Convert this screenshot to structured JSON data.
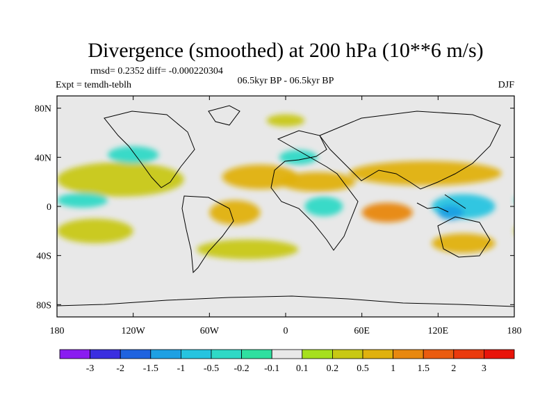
{
  "chart_data": {
    "type": "heatmap",
    "title": "Divergence (smoothed) at 200 hPa (10**6 m/s)",
    "stats": "rmsd= 0.2352 diff= -0.000220304",
    "experiment": "Expt = temdh-teblh",
    "period": "06.5kyr BP - 06.5kyr BP",
    "season": "DJF",
    "x_tick_labels": [
      "180",
      "120W",
      "60W",
      "0",
      "60E",
      "120E",
      "180"
    ],
    "x_ticks": [
      -180,
      -120,
      -60,
      0,
      60,
      120,
      180
    ],
    "xlim": [
      -180,
      180
    ],
    "y_tick_labels": [
      "80N",
      "40N",
      "0",
      "40S",
      "80S"
    ],
    "y_ticks": [
      80,
      40,
      0,
      -40,
      -80
    ],
    "ylim": [
      -90,
      90
    ],
    "colorbar": {
      "levels": [
        "-3",
        "-2",
        "-1.5",
        "-1",
        "-0.5",
        "-0.2",
        "-0.1",
        "0.1",
        "0.2",
        "0.5",
        "1",
        "1.5",
        "2",
        "3"
      ],
      "colors": [
        "#8a1cf0",
        "#3a2ee0",
        "#1f63df",
        "#1ea0e3",
        "#26c4e0",
        "#2fd9c6",
        "#2fe0a0",
        "#e8e8e8",
        "#a6e01e",
        "#c8c814",
        "#e0b10e",
        "#e8880f",
        "#ea5c10",
        "#ea3a0d",
        "#e8140a"
      ]
    },
    "regions": [
      {
        "name": "subtropical-north-band",
        "level": 9,
        "lon": -130,
        "lat": 22,
        "rx": 50,
        "ry": 14
      },
      {
        "name": "north-atlantic-band",
        "level": 10,
        "lon": -20,
        "lat": 24,
        "rx": 30,
        "ry": 10
      },
      {
        "name": "saharan-band",
        "level": 10,
        "lon": 25,
        "lat": 20,
        "rx": 30,
        "ry": 8
      },
      {
        "name": "asian-jet-band",
        "level": 10,
        "lon": 110,
        "lat": 27,
        "rx": 60,
        "ry": 10
      },
      {
        "name": "west-pacific-warm-pool",
        "level": 4,
        "lon": 140,
        "lat": 0,
        "rx": 25,
        "ry": 10
      },
      {
        "name": "maritime-continent",
        "level": 3,
        "lon": 130,
        "lat": -5,
        "rx": 10,
        "ry": 6
      },
      {
        "name": "indian-ocean-east",
        "level": 11,
        "lon": 80,
        "lat": -5,
        "rx": 20,
        "ry": 8
      },
      {
        "name": "african-dipole",
        "level": 5,
        "lon": 30,
        "lat": 0,
        "rx": 15,
        "ry": 8
      },
      {
        "name": "central-pacific-negative",
        "level": 5,
        "lon": -160,
        "lat": 5,
        "rx": 20,
        "ry": 6
      },
      {
        "name": "south-pacific-band",
        "level": 9,
        "lon": -150,
        "lat": -20,
        "rx": 30,
        "ry": 10
      },
      {
        "name": "south-america-east",
        "level": 10,
        "lon": -40,
        "lat": -5,
        "rx": 20,
        "ry": 10
      },
      {
        "name": "southern-midlat-band",
        "level": 9,
        "lon": -30,
        "lat": -35,
        "rx": 40,
        "ry": 8
      },
      {
        "name": "australia-south",
        "level": 10,
        "lon": 140,
        "lat": -30,
        "rx": 25,
        "ry": 8
      },
      {
        "name": "north-pacific-negative",
        "level": 5,
        "lon": -120,
        "lat": 42,
        "rx": 20,
        "ry": 7
      },
      {
        "name": "europe-negative",
        "level": 5,
        "lon": 10,
        "lat": 40,
        "rx": 15,
        "ry": 6
      },
      {
        "name": "arctic-patch",
        "level": 9,
        "lon": 0,
        "lat": 70,
        "rx": 15,
        "ry": 5
      }
    ]
  }
}
